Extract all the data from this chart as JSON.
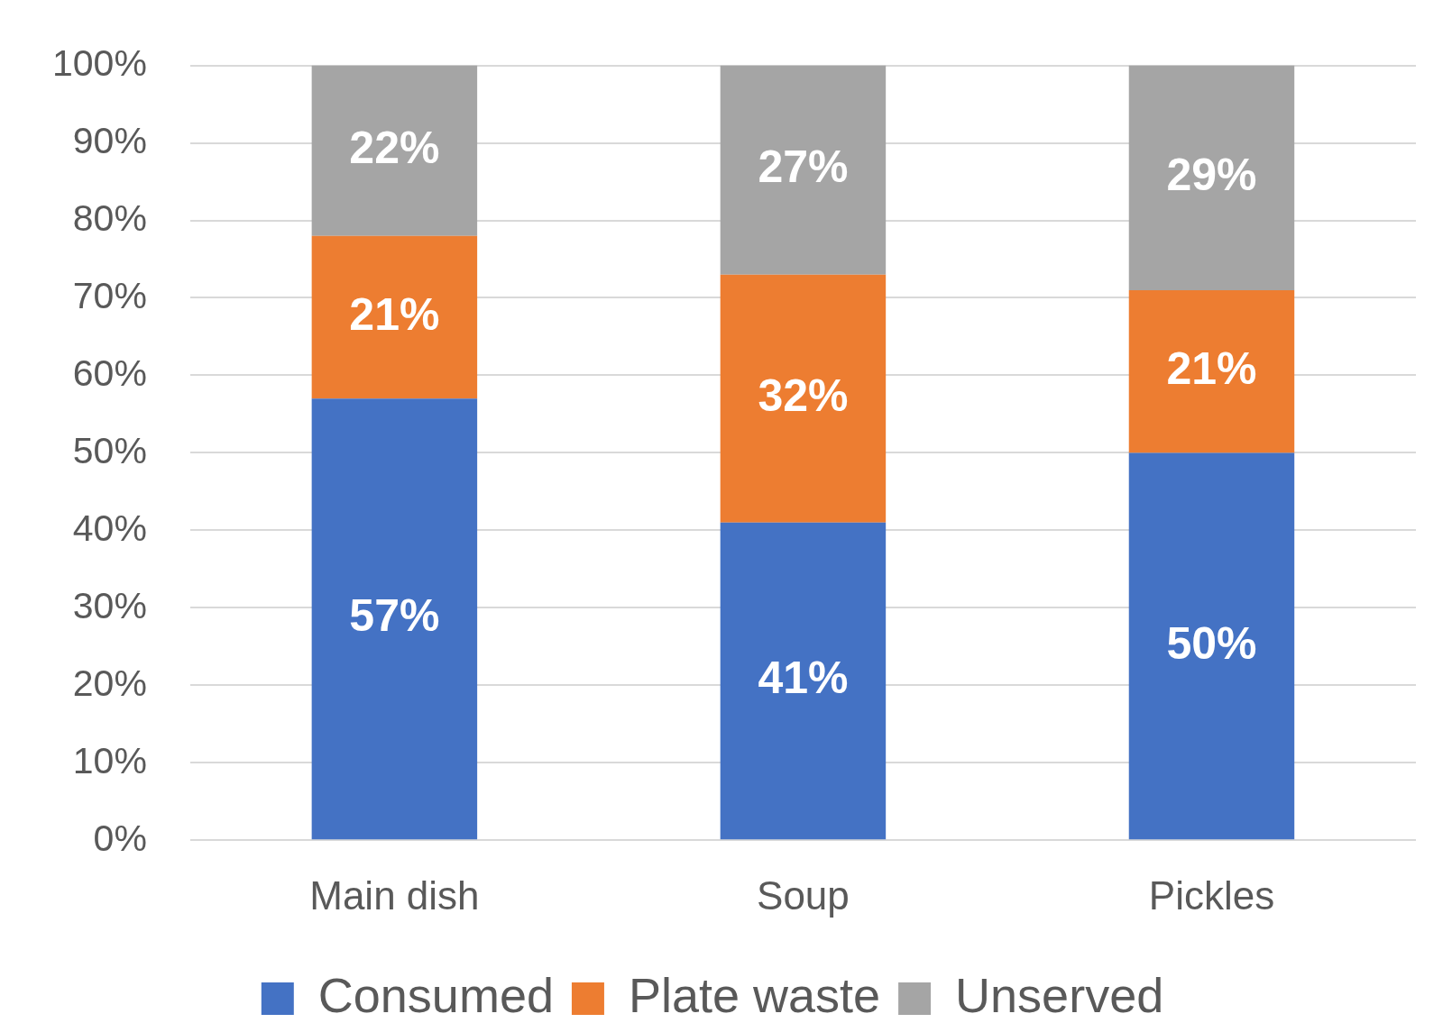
{
  "chart_data": {
    "type": "bar",
    "stacked": true,
    "categories": [
      "Main dish",
      "Soup",
      "Pickles"
    ],
    "series": [
      {
        "name": "Consumed",
        "color": "#4472c4",
        "values": [
          57,
          41,
          50
        ],
        "value_labels": [
          "57%",
          "41%",
          "50%"
        ]
      },
      {
        "name": "Plate waste",
        "color": "#ed7d31",
        "values": [
          21,
          32,
          21
        ],
        "value_labels": [
          "21%",
          "32%",
          "21%"
        ]
      },
      {
        "name": "Unserved",
        "color": "#a5a5a5",
        "values": [
          22,
          27,
          29
        ],
        "value_labels": [
          "22%",
          "27%",
          "29%"
        ]
      }
    ],
    "ylim": [
      0,
      100
    ],
    "yticks": [
      {
        "value": 0,
        "label": "0%"
      },
      {
        "value": 10,
        "label": "10%"
      },
      {
        "value": 20,
        "label": "20%"
      },
      {
        "value": 30,
        "label": "30%"
      },
      {
        "value": 40,
        "label": "40%"
      },
      {
        "value": 50,
        "label": "50%"
      },
      {
        "value": 60,
        "label": "60%"
      },
      {
        "value": 70,
        "label": "70%"
      },
      {
        "value": 80,
        "label": "80%"
      },
      {
        "value": 90,
        "label": "90%"
      },
      {
        "value": 100,
        "label": "100%"
      }
    ],
    "grid": "y",
    "legend": "bottom"
  }
}
